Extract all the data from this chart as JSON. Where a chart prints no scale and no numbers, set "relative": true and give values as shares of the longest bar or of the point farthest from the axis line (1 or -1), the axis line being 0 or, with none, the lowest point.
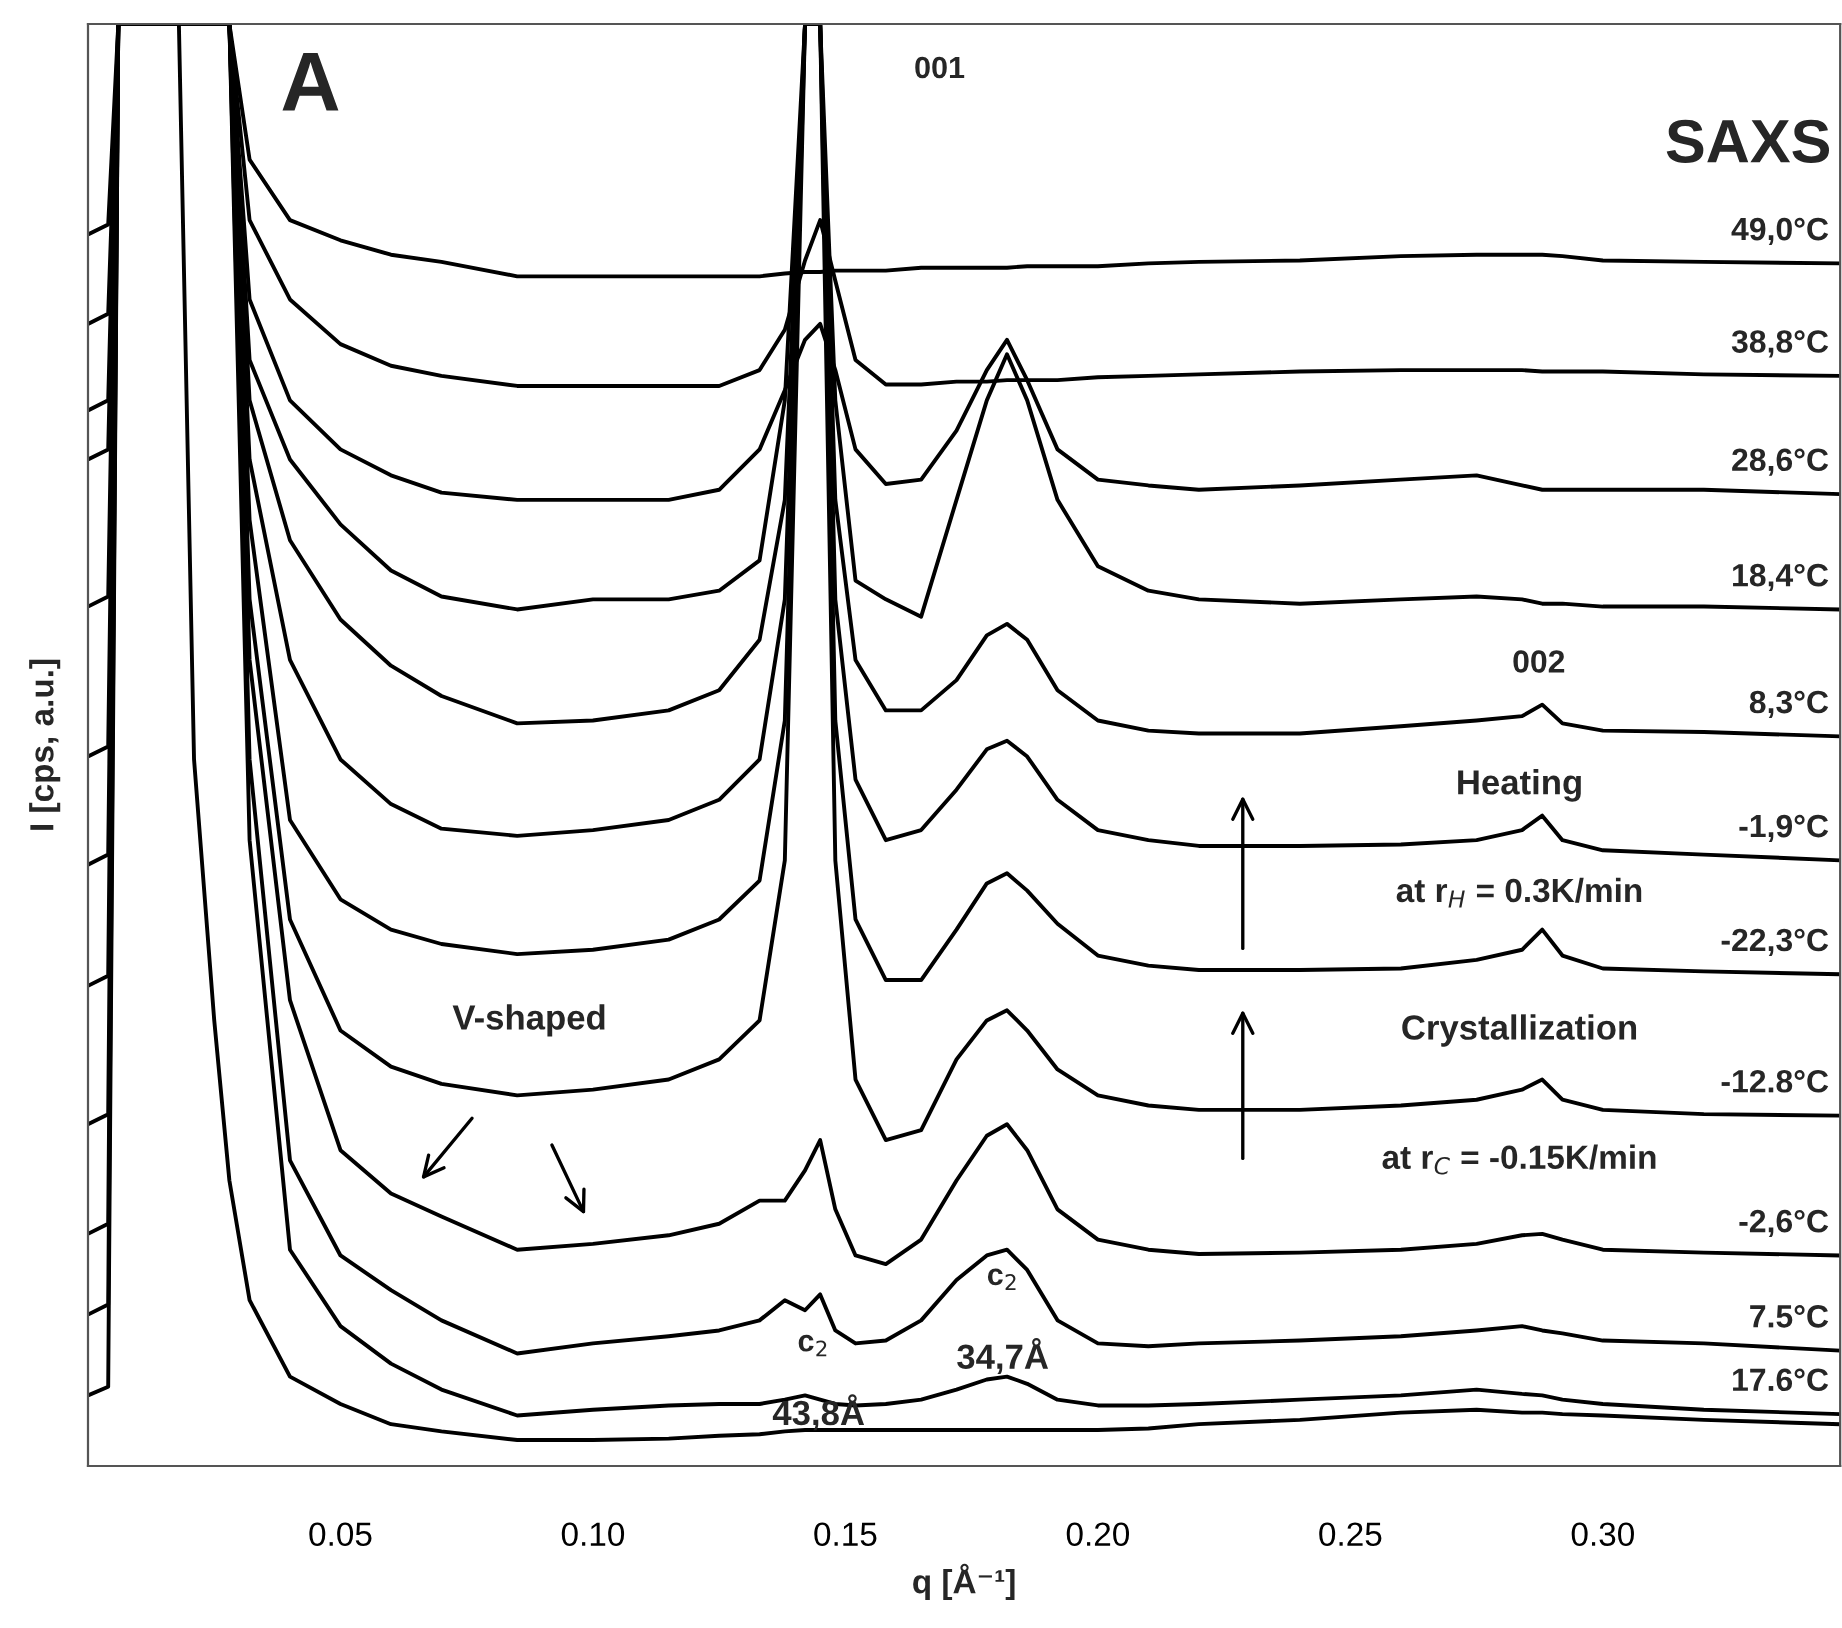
{
  "chart_data": {
    "type": "line",
    "relative": true,
    "xlabel": "q [Å⁻¹]",
    "ylabel": "I [cps, a.u.]",
    "x": [
      0,
      0.004,
      0.006,
      0.008,
      0.025,
      0.028,
      0.032,
      0.04,
      0.05,
      0.06,
      0.07,
      0.085,
      0.1,
      0.115,
      0.125,
      0.133,
      0.138,
      0.142,
      0.145,
      0.148,
      0.152,
      0.158,
      0.165,
      0.172,
      0.178,
      0.182,
      0.186,
      0.192,
      0.2,
      0.21,
      0.22,
      0.24,
      0.26,
      0.275,
      0.284,
      0.288,
      0.292,
      0.3,
      0.32,
      0.347
    ],
    "xlim": [
      0,
      0.347
    ],
    "xticks": [
      0.05,
      {
        "value": 0.1,
        "label": "0.10"
      },
      0.15,
      {
        "value": 0.2,
        "label": "0.20"
      },
      0.25,
      {
        "value": 0.3,
        "label": "0.30"
      }
    ],
    "tick_labels": "x",
    "grid": false,
    "legend": false,
    "marker": "none",
    "line_style": "solid",
    "series": [
      {
        "name": "49,0°C",
        "color": "#000000",
        "values": [
          0.854,
          0.861,
          1,
          1,
          1,
          1,
          0.906,
          0.864,
          0.85,
          0.84,
          0.835,
          0.825,
          0.825,
          0.825,
          0.825,
          0.825,
          0.827,
          0.828,
          0.828,
          0.829,
          0.829,
          0.829,
          0.831,
          0.831,
          0.831,
          0.831,
          0.832,
          0.832,
          0.832,
          0.834,
          0.835,
          0.836,
          0.839,
          0.84,
          0.84,
          0.84,
          0.839,
          0.836,
          0.835,
          0.834
        ]
      },
      {
        "name": "38,8°C",
        "color": "#000000",
        "values": [
          0.792,
          0.799,
          1,
          1,
          1,
          1,
          0.864,
          0.809,
          0.778,
          0.763,
          0.756,
          0.749,
          0.749,
          0.749,
          0.749,
          0.76,
          0.788,
          0.836,
          0.864,
          0.822,
          0.767,
          0.75,
          0.75,
          0.752,
          0.752,
          0.753,
          0.753,
          0.753,
          0.755,
          0.756,
          0.757,
          0.759,
          0.76,
          0.76,
          0.76,
          0.759,
          0.759,
          0.759,
          0.757,
          0.756
        ]
      },
      {
        "name": "28,6°C",
        "color": "#000000",
        "values": [
          0.732,
          0.739,
          1,
          1,
          1,
          1,
          0.809,
          0.739,
          0.705,
          0.687,
          0.675,
          0.67,
          0.67,
          0.67,
          0.677,
          0.705,
          0.746,
          0.781,
          0.792,
          0.76,
          0.705,
          0.681,
          0.684,
          0.718,
          0.76,
          0.781,
          0.753,
          0.705,
          0.684,
          0.68,
          0.677,
          0.68,
          0.684,
          0.687,
          0.68,
          0.677,
          0.677,
          0.677,
          0.677,
          0.674
        ]
      },
      {
        "name": "18,4°C",
        "color": "#000000",
        "values": [
          0.698,
          0.705,
          1,
          1,
          1,
          1,
          0.767,
          0.698,
          0.653,
          0.621,
          0.603,
          0.594,
          0.601,
          0.601,
          0.607,
          0.628,
          0.739,
          1,
          1,
          0.739,
          0.614,
          0.601,
          0.589,
          0.67,
          0.739,
          0.771,
          0.739,
          0.67,
          0.624,
          0.607,
          0.601,
          0.598,
          0.601,
          0.603,
          0.601,
          0.598,
          0.598,
          0.596,
          0.596,
          0.594
        ]
      },
      {
        "name": "8,3°C",
        "color": "#000000",
        "values": [
          0.596,
          0.603,
          1,
          1,
          1,
          1,
          0.739,
          0.642,
          0.587,
          0.555,
          0.534,
          0.515,
          0.517,
          0.524,
          0.538,
          0.573,
          0.67,
          1,
          1,
          0.67,
          0.559,
          0.524,
          0.524,
          0.545,
          0.576,
          0.584,
          0.573,
          0.538,
          0.517,
          0.51,
          0.508,
          0.508,
          0.513,
          0.517,
          0.52,
          0.528,
          0.515,
          0.51,
          0.509,
          0.506
        ]
      },
      {
        "name": "-1,9°C",
        "color": "#000000",
        "values": [
          0.492,
          0.499,
          1,
          1,
          1,
          1,
          0.698,
          0.559,
          0.49,
          0.459,
          0.442,
          0.437,
          0.441,
          0.448,
          0.462,
          0.49,
          0.601,
          1,
          1,
          0.601,
          0.476,
          0.434,
          0.441,
          0.469,
          0.497,
          0.503,
          0.492,
          0.462,
          0.441,
          0.434,
          0.43,
          0.43,
          0.431,
          0.434,
          0.441,
          0.451,
          0.434,
          0.427,
          0.424,
          0.42
        ]
      },
      {
        "name": "-22,3°C",
        "color": "#000000",
        "values": [
          0.417,
          0.424,
          1,
          1,
          1,
          1,
          0.656,
          0.448,
          0.393,
          0.372,
          0.362,
          0.355,
          0.358,
          0.365,
          0.379,
          0.406,
          0.517,
          1,
          1,
          0.517,
          0.379,
          0.337,
          0.337,
          0.372,
          0.404,
          0.411,
          0.399,
          0.376,
          0.354,
          0.347,
          0.344,
          0.344,
          0.345,
          0.351,
          0.358,
          0.372,
          0.354,
          0.345,
          0.343,
          0.341
        ]
      },
      {
        "name": "-12.8°C",
        "color": "#000000",
        "values": [
          0.333,
          0.34,
          1,
          1,
          1,
          1,
          0.601,
          0.379,
          0.302,
          0.277,
          0.265,
          0.257,
          0.261,
          0.268,
          0.282,
          0.309,
          0.42,
          1,
          1,
          0.42,
          0.268,
          0.226,
          0.233,
          0.282,
          0.309,
          0.316,
          0.302,
          0.275,
          0.257,
          0.25,
          0.247,
          0.247,
          0.25,
          0.254,
          0.261,
          0.268,
          0.254,
          0.247,
          0.244,
          0.243
        ]
      },
      {
        "name": "-2,6°C",
        "color": "#000000",
        "values": [
          0.237,
          0.244,
          1,
          1,
          1,
          1,
          0.559,
          0.323,
          0.219,
          0.189,
          0.173,
          0.15,
          0.154,
          0.16,
          0.168,
          0.184,
          0.184,
          0.205,
          0.226,
          0.178,
          0.146,
          0.14,
          0.157,
          0.198,
          0.229,
          0.237,
          0.219,
          0.178,
          0.157,
          0.15,
          0.147,
          0.148,
          0.15,
          0.154,
          0.16,
          0.161,
          0.157,
          0.15,
          0.148,
          0.146
        ]
      },
      {
        "name": "7.5°C",
        "color": "#000000",
        "values": [
          0.161,
          0.168,
          1,
          1,
          1,
          1,
          0.49,
          0.212,
          0.146,
          0.122,
          0.101,
          0.078,
          0.085,
          0.09,
          0.094,
          0.101,
          0.115,
          0.108,
          0.119,
          0.094,
          0.085,
          0.087,
          0.101,
          0.129,
          0.146,
          0.15,
          0.136,
          0.101,
          0.085,
          0.083,
          0.085,
          0.087,
          0.09,
          0.094,
          0.097,
          0.094,
          0.092,
          0.087,
          0.085,
          0.08
        ]
      },
      {
        "name": "17.6°C",
        "color": "#000000",
        "values": [
          0.105,
          0.112,
          1,
          1,
          1,
          1,
          0.434,
          0.15,
          0.097,
          0.071,
          0.053,
          0.035,
          0.039,
          0.042,
          0.043,
          0.043,
          0.046,
          0.049,
          0.046,
          0.043,
          0.042,
          0.043,
          0.046,
          0.053,
          0.06,
          0.062,
          0.057,
          0.046,
          0.042,
          0.042,
          0.043,
          0.046,
          0.049,
          0.053,
          0.05,
          0.049,
          0.046,
          0.043,
          0.039,
          0.036
        ]
      },
      {
        "color": "#000000",
        "x": [
          0,
          0.004,
          0.006,
          0.008,
          0.018,
          0.021,
          0.025,
          0.028,
          0.032,
          0.04,
          0.05,
          0.06,
          0.07,
          0.085,
          0.1,
          0.115,
          0.125,
          0.133,
          0.138,
          0.142,
          0.145,
          0.148,
          0.152,
          0.158,
          0.165,
          0.172,
          0.178,
          0.182,
          0.186,
          0.192,
          0.2,
          0.21,
          0.22,
          0.24,
          0.26,
          0.275,
          0.284,
          0.288,
          0.292,
          0.3,
          0.32,
          0.347
        ],
        "values": [
          0.049,
          0.055,
          1,
          1,
          1,
          0.49,
          0.309,
          0.198,
          0.115,
          0.062,
          0.043,
          0.029,
          0.024,
          0.018,
          0.018,
          0.019,
          0.021,
          0.022,
          0.024,
          0.025,
          0.025,
          0.025,
          0.025,
          0.025,
          0.025,
          0.025,
          0.025,
          0.025,
          0.025,
          0.025,
          0.025,
          0.026,
          0.029,
          0.032,
          0.037,
          0.039,
          0.037,
          0.037,
          0.036,
          0.035,
          0.032,
          0.029
        ]
      }
    ],
    "annotations": [
      "A",
      "001",
      "SAXS",
      "002",
      "Heating",
      "at r$_{H}$ = 0.3K/min",
      "Crystallization",
      "at r$_{C}$ = -0.15K/min",
      "V-shaped",
      "c$_{2}$",
      "43,8Å",
      "c$_{2}$",
      "34,7Å"
    ]
  }
}
